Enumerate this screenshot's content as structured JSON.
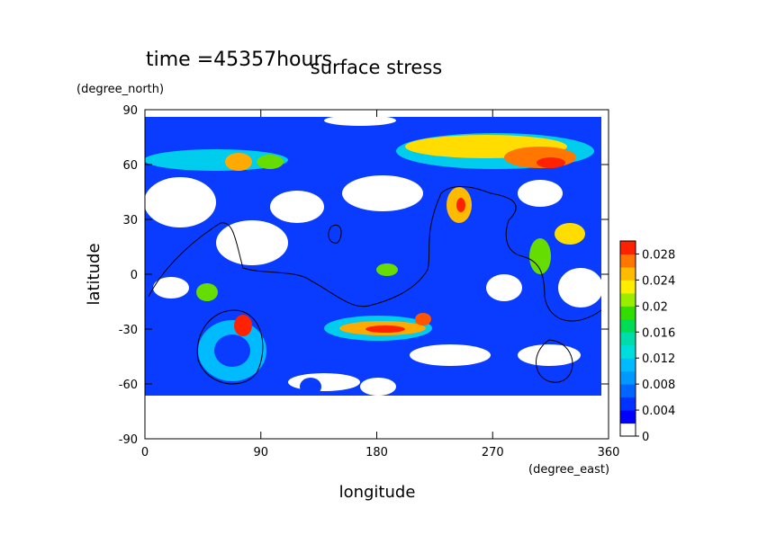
{
  "chart_data": {
    "type": "contour",
    "title": "surface stress",
    "subtitle": "time =45357hours",
    "x_label": "longitude",
    "y_label": "latitude",
    "x_unit": "(degree_east)",
    "y_unit": "(degree_north)",
    "xlim": [
      0,
      360
    ],
    "ylim": [
      -90,
      90
    ],
    "xticks": [
      0,
      90,
      180,
      270,
      360
    ],
    "yticks": [
      -90,
      -60,
      -30,
      0,
      30,
      60,
      90
    ],
    "colorbar": {
      "lim": [
        0,
        0.03
      ],
      "ticks": [
        0,
        0.004,
        0.008,
        0.012,
        0.016,
        0.02,
        0.024,
        0.028
      ],
      "colors": [
        "#ffffff",
        "#0000ff",
        "#0033ff",
        "#0066ff",
        "#0099ff",
        "#00bbff",
        "#00dddd",
        "#00ddaa",
        "#00dd55",
        "#33dd00",
        "#99ee00",
        "#ffee00",
        "#ffbb00",
        "#ff7700",
        "#ff2200"
      ]
    }
  }
}
